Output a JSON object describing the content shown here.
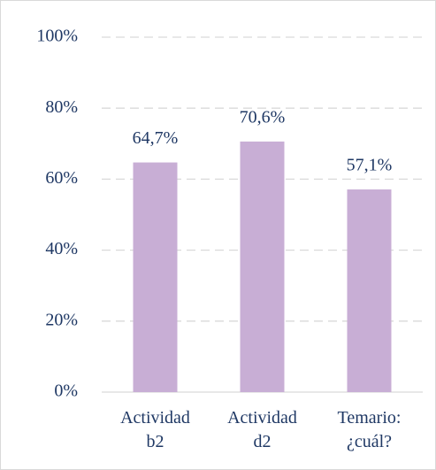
{
  "chart_data": {
    "type": "bar",
    "categories": [
      "Actividad b2",
      "Actividad d2",
      "Temario: ¿cuál?"
    ],
    "values": [
      64.7,
      70.6,
      57.1
    ],
    "value_labels": [
      "64,7%",
      "70,6%",
      "57,1%"
    ],
    "color": "#c8aed5",
    "ylim": [
      0,
      100
    ],
    "yticks": [
      {
        "value": 0,
        "label": "0%"
      },
      {
        "value": 20,
        "label": "20%"
      },
      {
        "value": 40,
        "label": "40%"
      },
      {
        "value": 60,
        "label": "60%"
      },
      {
        "value": 80,
        "label": "80%"
      },
      {
        "value": 100,
        "label": "100%"
      }
    ],
    "grid": true
  }
}
